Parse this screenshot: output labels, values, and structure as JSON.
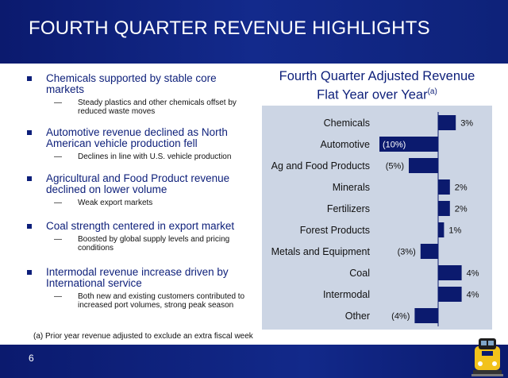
{
  "header": {
    "title": "FOURTH QUARTER REVENUE HIGHLIGHTS"
  },
  "bullets": [
    {
      "text": "Chemicals supported by stable core markets",
      "sub": "Steady plastics and other chemicals offset by reduced waste moves"
    },
    {
      "text": "Automotive revenue declined as North American vehicle production fell",
      "sub": "Declines in line with U.S. vehicle production"
    },
    {
      "text": "Agricultural and Food Product revenue declined on lower volume",
      "sub": "Weak export markets"
    },
    {
      "text": "Coal strength centered in export market",
      "sub": "Boosted by global supply levels and pricing conditions"
    },
    {
      "text": "Intermodal revenue increase driven by International service",
      "sub": "Both new and existing customers contributed to increased port volumes, strong peak season"
    }
  ],
  "footnote": "(a) Prior year revenue adjusted to exclude an extra fiscal week",
  "page_number": "6",
  "colors": {
    "navy": "#0d1f7a",
    "bar": "#0b1a6e",
    "panel": "#ccd5e4"
  },
  "chart_data": {
    "type": "bar",
    "orientation": "horizontal",
    "title_line1": "Fourth Quarter Adjusted Revenue",
    "title_line2": "Flat Year over Year",
    "title_superscript": "(a)",
    "categories": [
      "Chemicals",
      "Automotive",
      "Ag and Food Products",
      "Minerals",
      "Fertilizers",
      "Forest Products",
      "Metals and Equipment",
      "Coal",
      "Intermodal",
      "Other"
    ],
    "values": [
      3,
      -10,
      -5,
      2,
      2,
      1,
      -3,
      4,
      4,
      -4
    ],
    "value_labels": [
      "3%",
      "(10%)",
      "(5%)",
      "2%",
      "2%",
      "1%",
      "(3%)",
      "4%",
      "4%",
      "(4%)"
    ],
    "grid": false
  }
}
